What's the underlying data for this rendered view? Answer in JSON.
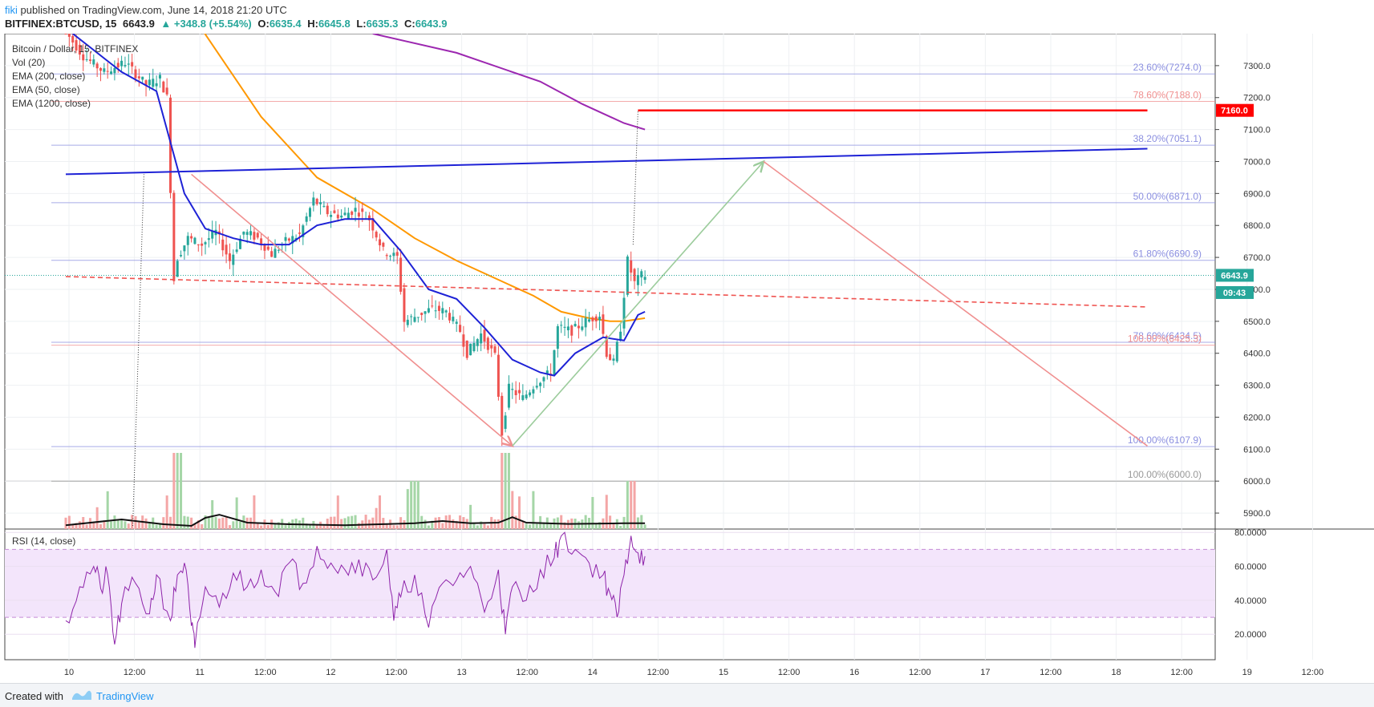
{
  "header": {
    "author": "fiki",
    "published": "published on TradingView.com, June 14, 2018 21:20 UTC",
    "symbol": "BITFINEX:BTCUSD, 15",
    "last": "6643.9",
    "change": "▲ +348.8 (+5.54%)",
    "o_label": "O:",
    "o": "6635.4",
    "h_label": "H:",
    "h": "6645.8",
    "l_label": "L:",
    "l": "6635.3",
    "c_label": "C:",
    "c": "6643.9"
  },
  "legend": {
    "title": "Bitcoin / Dollar, 15, BITFINEX",
    "vol": "Vol (20)",
    "ema200": "EMA (200, close)",
    "ema50": "EMA (50, close)",
    "ema1200": "EMA (1200, close)"
  },
  "rsi_label": "RSI (14, close)",
  "footer": {
    "created": "Created with",
    "brand": "TradingView"
  },
  "colors": {
    "up": "#26a69a",
    "down": "#ef5350",
    "ema50": "#1e22d6",
    "ema200": "#ff9800",
    "ema1200": "#9c27b0",
    "fib": "#8b8fe0",
    "rsi_fill": "#f3e5fb",
    "rsi_line": "#8e24aa"
  },
  "chart_data": {
    "type": "candlestick",
    "price_axis": {
      "min": 5850,
      "max": 7400,
      "ticks": [
        "7300.0",
        "7200.0",
        "7100.0",
        "7000.0",
        "6900.0",
        "6800.0",
        "6700.0",
        "6600.0",
        "6500.0",
        "6400.0",
        "6300.0",
        "6200.0",
        "6100.0",
        "6000.0",
        "5900.0"
      ]
    },
    "time_axis": [
      "10",
      "12:00",
      "11",
      "12:00",
      "12",
      "12:00",
      "13",
      "12:00",
      "14",
      "12:00",
      "15",
      "12:00",
      "16",
      "12:00",
      "17",
      "12:00",
      "18",
      "12:00",
      "19",
      "12:00"
    ],
    "price_badges": [
      {
        "label": "7160.0",
        "value": 7160,
        "color": "#ff0000"
      },
      {
        "label": "6643.9",
        "value": 6643.9,
        "color": "#26a69a"
      },
      {
        "label": "09:43",
        "value": 6590,
        "color": "#26a69a"
      }
    ],
    "fib_levels": [
      {
        "label": "23.60%(7274.0)",
        "value": 7274,
        "color": "#8b8fe0"
      },
      {
        "label": "78.60%(7188.0)",
        "value": 7188,
        "color": "#f08f8f"
      },
      {
        "label": "38.20%(7051.1)",
        "value": 7051.1,
        "color": "#8b8fe0"
      },
      {
        "label": "50.00%(6871.0)",
        "value": 6871,
        "color": "#8b8fe0"
      },
      {
        "label": "61.80%(6690.9)",
        "value": 6690.9,
        "color": "#8b8fe0"
      },
      {
        "label": "78.60%(6434.5)",
        "value": 6434.5,
        "color": "#8b8fe0"
      },
      {
        "label": "100.00%(6425.3)",
        "value": 6425.3,
        "color": "#f08f8f"
      },
      {
        "label": "100.00%(6107.9)",
        "value": 6107.9,
        "color": "#8b8fe0"
      },
      {
        "label": "100.00%(6000.0)",
        "value": 6000,
        "color": "#999999"
      }
    ],
    "price_path": [
      [
        0,
        7420
      ],
      [
        3,
        7330
      ],
      [
        6,
        7280
      ],
      [
        9,
        7310
      ],
      [
        12,
        7240
      ],
      [
        14,
        7260
      ],
      [
        15,
        7200
      ],
      [
        16,
        6630
      ],
      [
        16.5,
        6700
      ],
      [
        18,
        6760
      ],
      [
        20,
        6740
      ],
      [
        22,
        6780
      ],
      [
        24,
        6690
      ],
      [
        26,
        6780
      ],
      [
        28,
        6760
      ],
      [
        30,
        6710
      ],
      [
        32,
        6750
      ],
      [
        34,
        6770
      ],
      [
        36,
        6880
      ],
      [
        38,
        6840
      ],
      [
        40,
        6830
      ],
      [
        42,
        6850
      ],
      [
        44,
        6820
      ],
      [
        46,
        6720
      ],
      [
        48,
        6700
      ],
      [
        49,
        6500
      ],
      [
        51,
        6520
      ],
      [
        53,
        6540
      ],
      [
        55,
        6530
      ],
      [
        57,
        6470
      ],
      [
        58,
        6400
      ],
      [
        60,
        6460
      ],
      [
        62,
        6390
      ],
      [
        63,
        6150
      ],
      [
        64,
        6290
      ],
      [
        66,
        6260
      ],
      [
        68,
        6310
      ],
      [
        70,
        6340
      ],
      [
        71,
        6480
      ],
      [
        73,
        6470
      ],
      [
        75,
        6500
      ],
      [
        77,
        6520
      ],
      [
        78,
        6400
      ],
      [
        79,
        6370
      ],
      [
        80,
        6480
      ],
      [
        81,
        6690
      ],
      [
        82,
        6620
      ],
      [
        83,
        6643.9
      ]
    ],
    "ema50": [
      [
        1,
        7400
      ],
      [
        8,
        7280
      ],
      [
        13,
        7220
      ],
      [
        17,
        6900
      ],
      [
        20,
        6790
      ],
      [
        24,
        6760
      ],
      [
        28,
        6740
      ],
      [
        32,
        6740
      ],
      [
        36,
        6800
      ],
      [
        40,
        6820
      ],
      [
        44,
        6820
      ],
      [
        48,
        6720
      ],
      [
        52,
        6600
      ],
      [
        56,
        6570
      ],
      [
        60,
        6480
      ],
      [
        64,
        6380
      ],
      [
        68,
        6340
      ],
      [
        70,
        6330
      ],
      [
        73,
        6400
      ],
      [
        77,
        6450
      ],
      [
        80,
        6440
      ],
      [
        82,
        6520
      ],
      [
        83,
        6530
      ]
    ],
    "ema200": [
      [
        19,
        7430
      ],
      [
        28,
        7140
      ],
      [
        36,
        6950
      ],
      [
        44,
        6850
      ],
      [
        50,
        6760
      ],
      [
        56,
        6690
      ],
      [
        62,
        6630
      ],
      [
        67,
        6580
      ],
      [
        71,
        6530
      ],
      [
        75,
        6510
      ],
      [
        78,
        6500
      ],
      [
        80,
        6500
      ],
      [
        83,
        6510
      ]
    ],
    "ema1200": [
      [
        44,
        7400
      ],
      [
        56,
        7340
      ],
      [
        68,
        7250
      ],
      [
        74,
        7180
      ],
      [
        80,
        7120
      ],
      [
        83,
        7100
      ]
    ],
    "trendlines": [
      {
        "from": [
          0,
          6960
        ],
        "to": [
          155,
          7040
        ],
        "color": "#1e22d6",
        "style": "solid"
      },
      {
        "from": [
          0,
          6640
        ],
        "to": [
          155,
          6545
        ],
        "color": "#ef5350",
        "style": "dashed"
      },
      {
        "from": [
          18,
          6960
        ],
        "to": [
          64,
          6110
        ],
        "color": "#f08f8f",
        "style": "arrow"
      },
      {
        "from": [
          64,
          6110
        ],
        "to": [
          100,
          7000
        ],
        "color": "#9ccc9c",
        "style": "arrow"
      },
      {
        "from": [
          100,
          7000
        ],
        "to": [
          155,
          6110
        ],
        "color": "#f08f8f",
        "style": "solid"
      },
      {
        "from": [
          82,
          7160
        ],
        "to": [
          155,
          7160
        ],
        "color": "#ff0000",
        "style": "thick"
      }
    ],
    "volume_ma": [
      [
        0,
        5862
      ],
      [
        8,
        5880
      ],
      [
        14,
        5865
      ],
      [
        18,
        5860
      ],
      [
        20,
        5885
      ],
      [
        22,
        5895
      ],
      [
        26,
        5870
      ],
      [
        32,
        5865
      ],
      [
        40,
        5862
      ],
      [
        50,
        5868
      ],
      [
        54,
        5875
      ],
      [
        58,
        5868
      ],
      [
        62,
        5870
      ],
      [
        64,
        5887
      ],
      [
        66,
        5870
      ],
      [
        72,
        5866
      ],
      [
        80,
        5868
      ],
      [
        83,
        5868
      ]
    ],
    "rsi_axis": {
      "min": 5,
      "max": 82,
      "ticks": [
        "80.0000",
        "60.0000",
        "40.0000",
        "20.0000"
      ],
      "band": [
        30,
        70
      ]
    },
    "rsi": [
      [
        0,
        28
      ],
      [
        2,
        48
      ],
      [
        4,
        60
      ],
      [
        5,
        47
      ],
      [
        6,
        55
      ],
      [
        7,
        14
      ],
      [
        8,
        38
      ],
      [
        10,
        50
      ],
      [
        12,
        32
      ],
      [
        13,
        55
      ],
      [
        15,
        28
      ],
      [
        16,
        55
      ],
      [
        17,
        62
      ],
      [
        18,
        25
      ],
      [
        18.5,
        12
      ],
      [
        20,
        48
      ],
      [
        22,
        36
      ],
      [
        24,
        56
      ],
      [
        26,
        48
      ],
      [
        28,
        58
      ],
      [
        30,
        45
      ],
      [
        32,
        62
      ],
      [
        34,
        50
      ],
      [
        36,
        72
      ],
      [
        38,
        62
      ],
      [
        40,
        58
      ],
      [
        42,
        64
      ],
      [
        44,
        52
      ],
      [
        46,
        70
      ],
      [
        47,
        28
      ],
      [
        48,
        42
      ],
      [
        50,
        55
      ],
      [
        52,
        24
      ],
      [
        54,
        50
      ],
      [
        56,
        52
      ],
      [
        58,
        60
      ],
      [
        60,
        33
      ],
      [
        62,
        58
      ],
      [
        63,
        20
      ],
      [
        64,
        48
      ],
      [
        66,
        40
      ],
      [
        68,
        58
      ],
      [
        70,
        65
      ],
      [
        71,
        78
      ],
      [
        73,
        70
      ],
      [
        75,
        62
      ],
      [
        77,
        55
      ],
      [
        78,
        44
      ],
      [
        79,
        30
      ],
      [
        80,
        55
      ],
      [
        81,
        78
      ],
      [
        82,
        68
      ],
      [
        83,
        66
      ]
    ]
  }
}
